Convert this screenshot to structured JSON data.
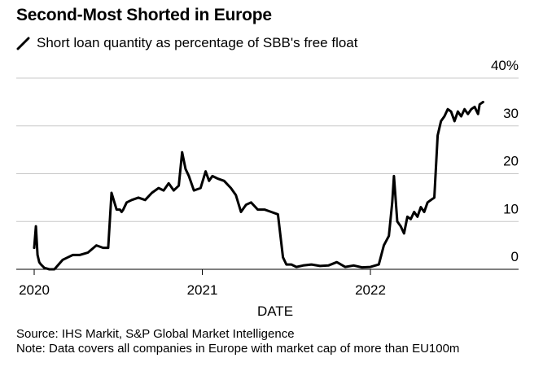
{
  "title": "Second-Most Shorted in Europe",
  "legend": {
    "label": "Short loan quantity as percentage of SBB's free float",
    "color": "#000000"
  },
  "source": "Source: IHS Markit, S&P Global Market Intelligence",
  "note": "Note: Data covers all companies in Europe with market cap of more than EU100m",
  "chart_data": {
    "type": "line",
    "title": "Second-Most Shorted in Europe",
    "xlabel": "DATE",
    "ylabel": "",
    "xlim": [
      2020.0,
      2022.87
    ],
    "ylim": [
      0,
      40
    ],
    "y_ticks": [
      0,
      10,
      20,
      30,
      40
    ],
    "y_tick_labels": [
      "0",
      "10",
      "20",
      "30",
      "40%"
    ],
    "x_ticks": [
      2020,
      2021,
      2022
    ],
    "x_tick_labels": [
      "2020",
      "2021",
      "2022"
    ],
    "grid": true,
    "series": [
      {
        "name": "Short loan quantity as percentage of SBB's free float",
        "color": "#000000",
        "x": [
          2020.0,
          2020.01,
          2020.02,
          2020.03,
          2020.04,
          2020.06,
          2020.09,
          2020.12,
          2020.17,
          2020.2,
          2020.23,
          2020.27,
          2020.32,
          2020.37,
          2020.41,
          2020.44,
          2020.46,
          2020.49,
          2020.51,
          2020.52,
          2020.53,
          2020.55,
          2020.58,
          2020.62,
          2020.66,
          2020.7,
          2020.74,
          2020.77,
          2020.8,
          2020.83,
          2020.86,
          2020.88,
          2020.9,
          2020.92,
          2020.95,
          2020.99,
          2021.02,
          2021.04,
          2021.06,
          2021.09,
          2021.13,
          2021.17,
          2021.2,
          2021.23,
          2021.26,
          2021.29,
          2021.33,
          2021.37,
          2021.41,
          2021.45,
          2021.48,
          2021.5,
          2021.53,
          2021.56,
          2021.6,
          2021.65,
          2021.7,
          2021.75,
          2021.8,
          2021.85,
          2021.9,
          2021.95,
          2022.0,
          2022.05,
          2022.08,
          2022.11,
          2022.13,
          2022.14,
          2022.16,
          2022.18,
          2022.2,
          2022.22,
          2022.24,
          2022.26,
          2022.28,
          2022.3,
          2022.32,
          2022.34,
          2022.36,
          2022.38,
          2022.4,
          2022.42,
          2022.44,
          2022.46,
          2022.48,
          2022.5,
          2022.52,
          2022.54,
          2022.56,
          2022.58,
          2022.6,
          2022.62,
          2022.64,
          2022.65,
          2022.67
        ],
        "y": [
          4.5,
          9,
          3,
          1.5,
          1,
          0.3,
          0,
          0,
          2,
          2.5,
          3,
          3,
          3.5,
          5,
          4.5,
          4.5,
          16,
          12.5,
          12.5,
          12,
          12.5,
          14,
          14.5,
          15,
          14.5,
          16,
          17,
          16.5,
          18,
          16.5,
          17.5,
          24.5,
          21,
          19.5,
          16.5,
          17,
          20.5,
          18.5,
          19.5,
          19,
          18.5,
          17,
          15.5,
          12,
          13.5,
          14,
          12.5,
          12.5,
          12,
          11.5,
          2.5,
          1,
          1,
          0.5,
          0.8,
          1,
          0.7,
          0.8,
          1.5,
          0.5,
          0.8,
          0.4,
          0.5,
          1,
          5,
          7,
          14,
          19.5,
          10,
          9,
          7.5,
          11,
          10.5,
          12,
          11,
          13,
          12,
          14,
          14.5,
          15,
          28,
          31,
          32,
          33.5,
          33,
          31,
          33,
          32,
          33.5,
          32.5,
          33.5,
          34,
          32.5,
          34.5,
          35
        ]
      }
    ]
  }
}
